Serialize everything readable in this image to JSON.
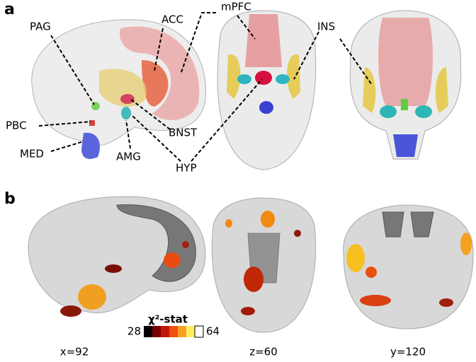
{
  "panel_a": {
    "label": "a",
    "regions": [
      "mPFC",
      "ACC",
      "PAG",
      "INS",
      "PBC",
      "BNST",
      "MED",
      "AMG",
      "HYP"
    ]
  },
  "panel_b": {
    "label": "b",
    "colorbar": {
      "title": "χ²-stat",
      "min": "28",
      "max": "64"
    },
    "slices": [
      "x=92",
      "z=60",
      "y=120"
    ]
  }
}
